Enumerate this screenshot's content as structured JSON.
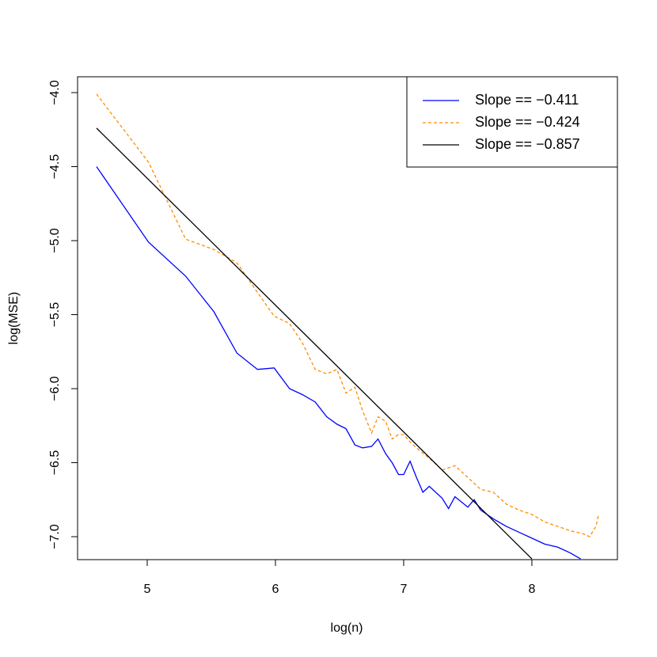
{
  "chart_data": {
    "type": "line",
    "xlabel": "log(n)",
    "ylabel": "log(MSE)",
    "xlim": [
      4.457,
      8.667
    ],
    "ylim": [
      -7.155,
      -3.893
    ],
    "xticks": [
      5,
      6,
      7,
      8
    ],
    "yticks": [
      {
        "value": -4.0,
        "label": "−4.0"
      },
      {
        "value": -4.5,
        "label": "−4.5"
      },
      {
        "value": -5.0,
        "label": "−5.0"
      },
      {
        "value": -5.5,
        "label": "−5.5"
      },
      {
        "value": -6.0,
        "label": "−6.0"
      },
      {
        "value": -6.5,
        "label": "−6.5"
      },
      {
        "value": -7.0,
        "label": "−7.0"
      }
    ],
    "legend": "top-right",
    "series": [
      {
        "name": "Slope == −0.411",
        "color": "#0000ff",
        "linestyle": "solid",
        "x": [
          4.605,
          5.01,
          5.3,
          5.52,
          5.7,
          5.86,
          5.99,
          6.11,
          6.21,
          6.31,
          6.4,
          6.48,
          6.55,
          6.62,
          6.68,
          6.75,
          6.8,
          6.86,
          6.91,
          6.96,
          7.0,
          7.05,
          7.1,
          7.15,
          7.2,
          7.3,
          7.35,
          7.4,
          7.5,
          7.55,
          7.6,
          7.7,
          7.8,
          7.9,
          8.0,
          8.1,
          8.2,
          8.3,
          8.38
        ],
        "values": [
          -4.5,
          -5.01,
          -5.24,
          -5.48,
          -5.76,
          -5.87,
          -5.86,
          -6.0,
          -6.04,
          -6.09,
          -6.19,
          -6.24,
          -6.27,
          -6.38,
          -6.4,
          -6.39,
          -6.34,
          -6.44,
          -6.5,
          -6.58,
          -6.58,
          -6.49,
          -6.6,
          -6.7,
          -6.66,
          -6.74,
          -6.81,
          -6.73,
          -6.8,
          -6.75,
          -6.82,
          -6.88,
          -6.93,
          -6.97,
          -7.01,
          -7.05,
          -7.07,
          -7.11,
          -7.15
        ]
      },
      {
        "name": "Slope == −0.424",
        "color": "#ff8c00",
        "linestyle": "dashed",
        "x": [
          4.605,
          5.01,
          5.3,
          5.52,
          5.7,
          5.86,
          5.99,
          6.11,
          6.21,
          6.31,
          6.4,
          6.48,
          6.55,
          6.62,
          6.68,
          6.75,
          6.8,
          6.86,
          6.91,
          6.96,
          7.0,
          7.05,
          7.1,
          7.2,
          7.3,
          7.4,
          7.5,
          7.6,
          7.7,
          7.8,
          7.9,
          8.0,
          8.1,
          8.2,
          8.3,
          8.4,
          8.45,
          8.5,
          8.52
        ],
        "values": [
          -4.01,
          -4.47,
          -4.99,
          -5.06,
          -5.15,
          -5.35,
          -5.51,
          -5.56,
          -5.69,
          -5.87,
          -5.9,
          -5.87,
          -6.03,
          -5.99,
          -6.15,
          -6.3,
          -6.19,
          -6.22,
          -6.34,
          -6.31,
          -6.31,
          -6.36,
          -6.4,
          -6.47,
          -6.55,
          -6.52,
          -6.6,
          -6.68,
          -6.7,
          -6.78,
          -6.82,
          -6.85,
          -6.9,
          -6.93,
          -6.96,
          -6.98,
          -7.0,
          -6.93,
          -6.85
        ]
      },
      {
        "name": "Slope == −0.857",
        "color": "#000000",
        "linestyle": "solid",
        "x": [
          4.605,
          8.0
        ],
        "values": [
          -4.24,
          -7.15
        ]
      }
    ]
  }
}
